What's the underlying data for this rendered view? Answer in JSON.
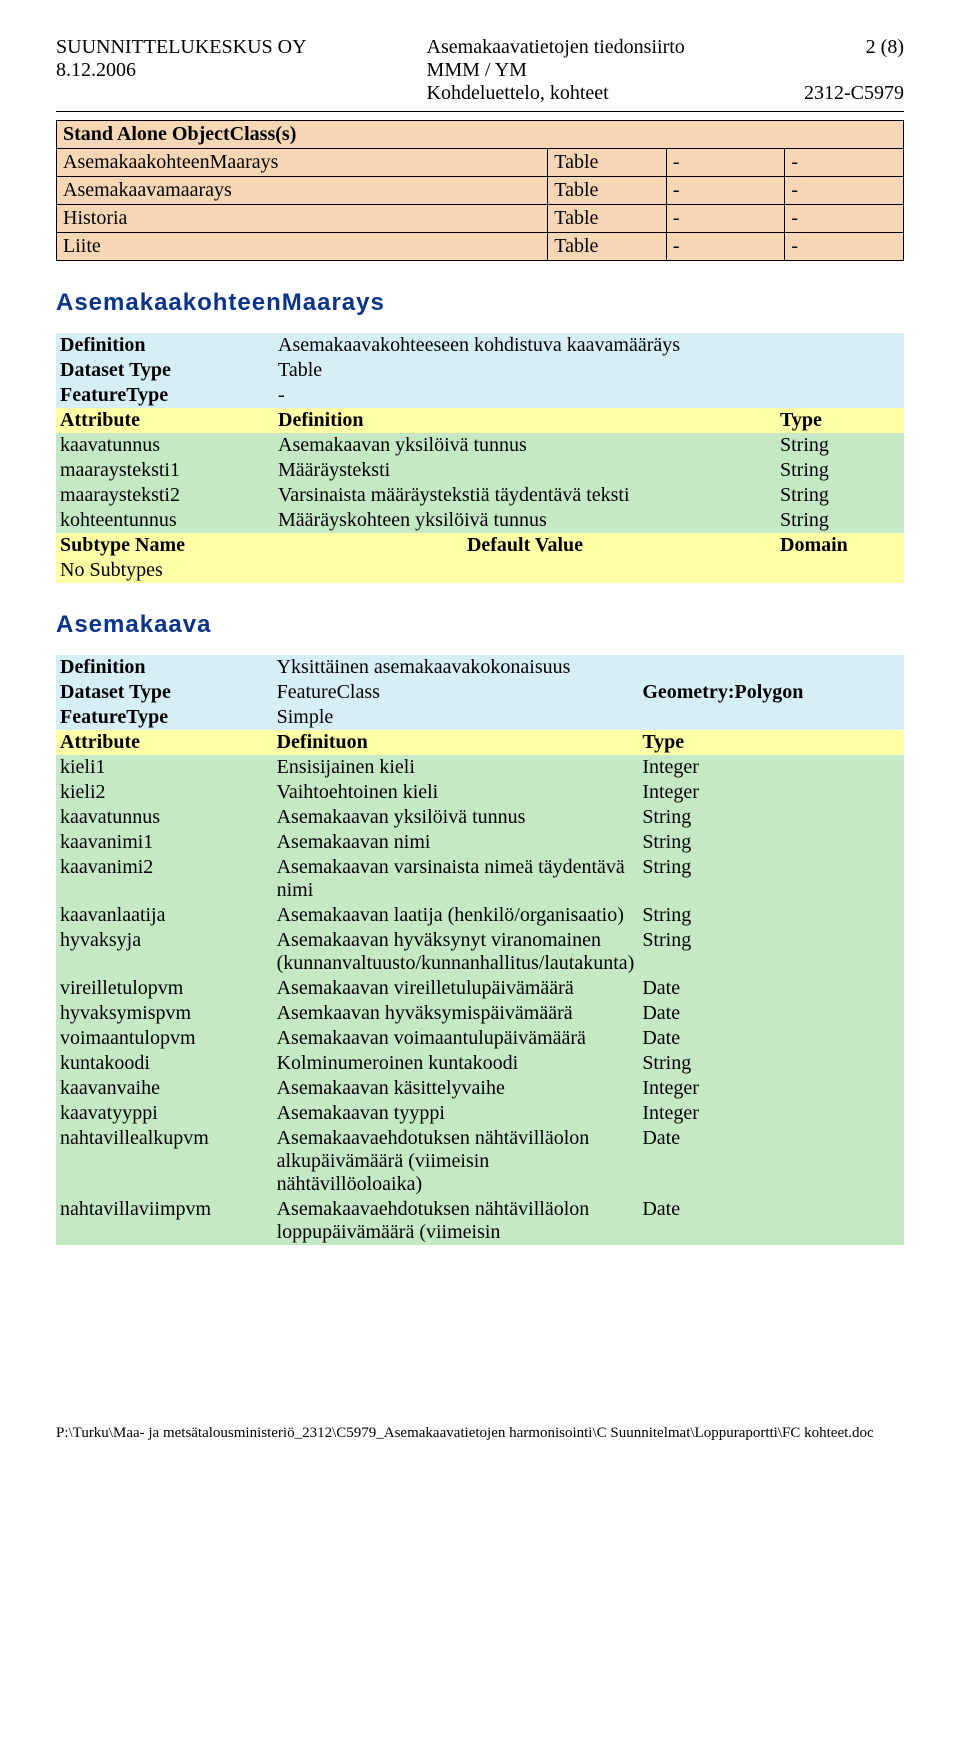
{
  "header": {
    "company": "SUUNNITTELUKESKUS OY",
    "date": "8.12.2006",
    "title_line1": "Asemakaavatietojen tiedonsiirto",
    "title_line2": "MMM / YM",
    "title_line3": "Kohdeluettelo, kohteet",
    "page_of": "2 (8)",
    "doc_code": "2312-C5979"
  },
  "sao": {
    "heading": "Stand Alone ObjectClass(s)",
    "rows": [
      {
        "name": "AsemakaakohteenMaarays",
        "c2": "Table",
        "c3": "-",
        "c4": "-"
      },
      {
        "name": "Asemakaavamaarays",
        "c2": "Table",
        "c3": "-",
        "c4": "-"
      },
      {
        "name": "Historia",
        "c2": "Table",
        "c3": "-",
        "c4": "-"
      },
      {
        "name": "Liite",
        "c2": "Table",
        "c3": "-",
        "c4": "-"
      }
    ]
  },
  "sec1": {
    "name": "AsemakaakohteenMaarays",
    "definition_label": "Definition",
    "definition_value": "Asemakaavakohteeseen kohdistuva kaavamääräys",
    "dataset_type_label": "Dataset Type",
    "dataset_type_value": "Table",
    "feature_type_label": "FeatureType",
    "feature_type_value": "-",
    "attr_header": {
      "c1": "Attribute",
      "c2": "Definition",
      "c3": "Type"
    },
    "attrs": [
      {
        "c1": "kaavatunnus",
        "c2": "Asemakaavan yksilöivä tunnus",
        "c3": "String"
      },
      {
        "c1": "maaraysteksti1",
        "c2": "Määräysteksti",
        "c3": "String"
      },
      {
        "c1": "maaraysteksti2",
        "c2": "Varsinaista määräystekstiä täydentävä teksti",
        "c3": "String"
      },
      {
        "c1": "kohteentunnus",
        "c2": "Määräyskohteen yksilöivä tunnus",
        "c3": "String"
      }
    ],
    "sub_header": {
      "c1": "Subtype Name",
      "c2": "Default Value",
      "c3": "Domain"
    },
    "sub_none": "No Subtypes"
  },
  "sec2": {
    "name": "Asemakaava",
    "definition_label": "Definition",
    "definition_value": "Yksittäinen asemakaavakokonaisuus",
    "dataset_type_label": "Dataset Type",
    "dataset_type_value": "FeatureClass",
    "feature_type_label": "FeatureType",
    "feature_type_value": "Simple",
    "geometry_label": "Geometry:Polygon",
    "attr_header": {
      "c1": "Attribute",
      "c2": "Definituon",
      "c3": "Type"
    },
    "attrs": [
      {
        "c1": "kieli1",
        "c2": "Ensisijainen kieli",
        "c3": "Integer"
      },
      {
        "c1": "kieli2",
        "c2": "Vaihtoehtoinen kieli",
        "c3": "Integer"
      },
      {
        "c1": "kaavatunnus",
        "c2": "Asemakaavan yksilöivä tunnus",
        "c3": "String"
      },
      {
        "c1": "kaavanimi1",
        "c2": "Asemakaavan nimi",
        "c3": "String"
      },
      {
        "c1": "kaavanimi2",
        "c2": "Asemakaavan varsinaista nimeä täydentävä nimi",
        "c3": "String"
      },
      {
        "c1": "kaavanlaatija",
        "c2": "Asemakaavan laatija (henkilö/organisaatio)",
        "c3": "String"
      },
      {
        "c1": "hyvaksyja",
        "c2": "Asemakaavan hyväksynyt viranomainen (kunnanvaltuusto/kunnanhallitus/lautakunta)",
        "c3": "String"
      },
      {
        "c1": "vireilletulopvm",
        "c2": "Asemakaavan vireilletulupäivämäärä",
        "c3": "Date"
      },
      {
        "c1": "hyvaksymispvm",
        "c2": "Asemkaavan hyväksymispäivämäärä",
        "c3": "Date"
      },
      {
        "c1": "voimaantulopvm",
        "c2": "Asemakaavan voimaantulupäivämäärä",
        "c3": "Date"
      },
      {
        "c1": "kuntakoodi",
        "c2": "Kolminumeroinen kuntakoodi",
        "c3": "String"
      },
      {
        "c1": "kaavanvaihe",
        "c2": "Asemakaavan käsittelyvaihe",
        "c3": "Integer"
      },
      {
        "c1": "kaavatyyppi",
        "c2": "Asemakaavan tyyppi",
        "c3": "Integer"
      },
      {
        "c1": "nahtavillealkupvm",
        "c2": "Asemakaavaehdotuksen nähtävilläolon alkupäivämäärä (viimeisin nähtävillöoloaika)",
        "c3": "Date"
      },
      {
        "c1": "nahtavillaviimpvm",
        "c2": "Asemakaavaehdotuksen nähtävilläolon loppupäivämäärä (viimeisin",
        "c3": "Date"
      }
    ]
  },
  "footer": "P:\\Turku\\Maa- ja metsätalousministeriö_2312\\C5979_Asemakaavatietojen harmonisointi\\C Suunnitelmat\\Loppuraportti\\FC kohteet.doc"
}
